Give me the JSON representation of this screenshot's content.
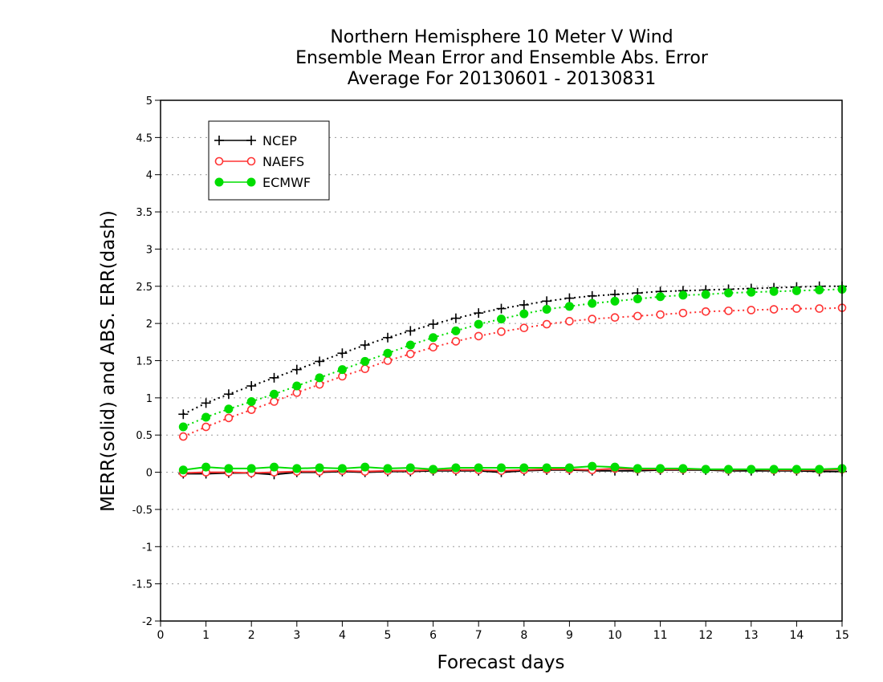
{
  "chart_data": {
    "type": "line",
    "title_lines": [
      "Northern Hemisphere 10 Meter V Wind",
      "Ensemble Mean Error and Ensemble Abs. Error",
      "Average For 20130601 - 20130831"
    ],
    "xlabel": "Forecast days",
    "ylabel": "MERR(solid) and ABS. ERR(dash)",
    "xlim": [
      0,
      15
    ],
    "ylim": [
      -2,
      5
    ],
    "x_ticks": [
      "0",
      "1",
      "2",
      "3",
      "4",
      "5",
      "6",
      "7",
      "8",
      "9",
      "10",
      "11",
      "12",
      "13",
      "14",
      "15"
    ],
    "y_ticks": [
      "-2",
      "-1.5",
      "-1",
      "-0.5",
      "0",
      "0.5",
      "1",
      "1.5",
      "2",
      "2.5",
      "3",
      "3.5",
      "4",
      "4.5",
      "5"
    ],
    "grid": "horizontal dotted",
    "legend_position": "top-left",
    "x": [
      0.5,
      1,
      1.5,
      2,
      2.5,
      3,
      3.5,
      4,
      4.5,
      5,
      5.5,
      6,
      6.5,
      7,
      7.5,
      8,
      8.5,
      9,
      9.5,
      10,
      10.5,
      11,
      11.5,
      12,
      12.5,
      13,
      13.5,
      14,
      14.5,
      15
    ],
    "series": [
      {
        "name": "NCEP",
        "color": "#000000",
        "marker": "plus",
        "abs_err": [
          0.78,
          0.93,
          1.05,
          1.16,
          1.27,
          1.38,
          1.49,
          1.6,
          1.71,
          1.81,
          1.9,
          1.99,
          2.07,
          2.14,
          2.2,
          2.25,
          2.3,
          2.34,
          2.37,
          2.39,
          2.41,
          2.43,
          2.44,
          2.45,
          2.46,
          2.47,
          2.48,
          2.49,
          2.5,
          2.5
        ],
        "mean_err": [
          -0.02,
          -0.02,
          -0.01,
          -0.01,
          -0.03,
          0.0,
          0.0,
          0.01,
          0.0,
          0.01,
          0.01,
          0.02,
          0.02,
          0.02,
          0.0,
          0.02,
          0.03,
          0.03,
          0.02,
          0.02,
          0.02,
          0.03,
          0.03,
          0.03,
          0.02,
          0.02,
          0.02,
          0.02,
          0.01,
          0.01
        ]
      },
      {
        "name": "NAEFS",
        "color": "#ff3333",
        "marker": "open-circle",
        "abs_err": [
          0.48,
          0.61,
          0.73,
          0.84,
          0.95,
          1.07,
          1.18,
          1.29,
          1.39,
          1.5,
          1.59,
          1.68,
          1.76,
          1.83,
          1.89,
          1.94,
          1.99,
          2.03,
          2.06,
          2.08,
          2.1,
          2.12,
          2.14,
          2.16,
          2.17,
          2.18,
          2.19,
          2.2,
          2.2,
          2.21
        ],
        "mean_err": [
          -0.01,
          0.0,
          0.0,
          -0.01,
          0.0,
          0.01,
          0.01,
          0.02,
          0.01,
          0.02,
          0.02,
          0.03,
          0.03,
          0.03,
          0.02,
          0.03,
          0.04,
          0.04,
          0.03,
          0.05,
          0.04,
          0.04,
          0.04,
          0.04,
          0.03,
          0.04,
          0.03,
          0.03,
          0.03,
          0.04
        ]
      },
      {
        "name": "ECMWF",
        "color": "#00dd00",
        "marker": "filled-circle",
        "abs_err": [
          0.61,
          0.74,
          0.85,
          0.95,
          1.05,
          1.16,
          1.27,
          1.38,
          1.49,
          1.6,
          1.71,
          1.81,
          1.9,
          1.99,
          2.06,
          2.13,
          2.19,
          2.23,
          2.27,
          2.3,
          2.33,
          2.36,
          2.38,
          2.39,
          2.41,
          2.42,
          2.43,
          2.44,
          2.45,
          2.46
        ],
        "mean_err": [
          0.03,
          0.07,
          0.05,
          0.05,
          0.07,
          0.05,
          0.06,
          0.05,
          0.07,
          0.05,
          0.06,
          0.04,
          0.06,
          0.06,
          0.06,
          0.06,
          0.06,
          0.06,
          0.08,
          0.07,
          0.05,
          0.05,
          0.05,
          0.04,
          0.04,
          0.04,
          0.04,
          0.04,
          0.04,
          0.05
        ]
      }
    ]
  }
}
